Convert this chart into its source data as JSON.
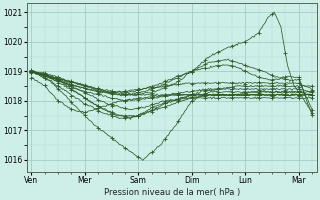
{
  "background_color": "#ceeee8",
  "line_color": "#2d5a27",
  "xlabel": "Pression niveau de la mer( hPa )",
  "ylim": [
    1015.6,
    1021.3
  ],
  "yticks": [
    1016,
    1017,
    1018,
    1019,
    1020,
    1021
  ],
  "day_labels": [
    "Ven",
    "Mer",
    "Sam",
    "Dim",
    "Lun",
    "Mar"
  ],
  "day_positions": [
    0,
    24,
    48,
    72,
    96,
    120
  ],
  "xlim": [
    0,
    128
  ],
  "grid_color": "#b0d8d0",
  "grid_color_major": "#98c8c0"
}
